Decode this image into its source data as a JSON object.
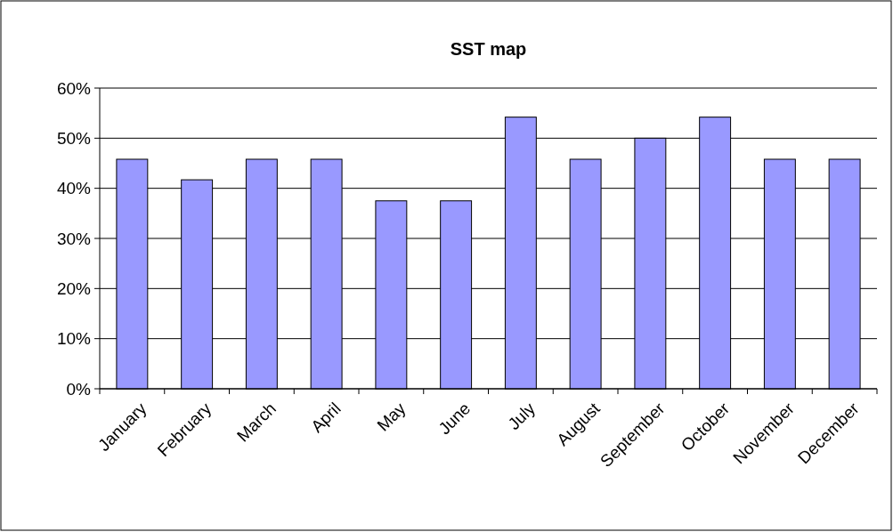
{
  "chart_data": {
    "type": "bar",
    "title": "SST map",
    "categories": [
      "January",
      "February",
      "March",
      "April",
      "May",
      "June",
      "July",
      "August",
      "September",
      "October",
      "November",
      "December"
    ],
    "values": [
      45.8,
      41.7,
      45.8,
      45.8,
      37.5,
      37.5,
      54.2,
      45.8,
      50,
      54.2,
      45.8,
      45.8
    ],
    "color": "#9999ff",
    "ylim": [
      0,
      60
    ],
    "yticks": [
      {
        "value": 0,
        "label": "0%"
      },
      {
        "value": 10,
        "label": "10%"
      },
      {
        "value": 20,
        "label": "20%"
      },
      {
        "value": 30,
        "label": "30%"
      },
      {
        "value": 40,
        "label": "40%"
      },
      {
        "value": 50,
        "label": "50%"
      },
      {
        "value": 60,
        "label": "60%"
      }
    ],
    "grid": "y"
  }
}
